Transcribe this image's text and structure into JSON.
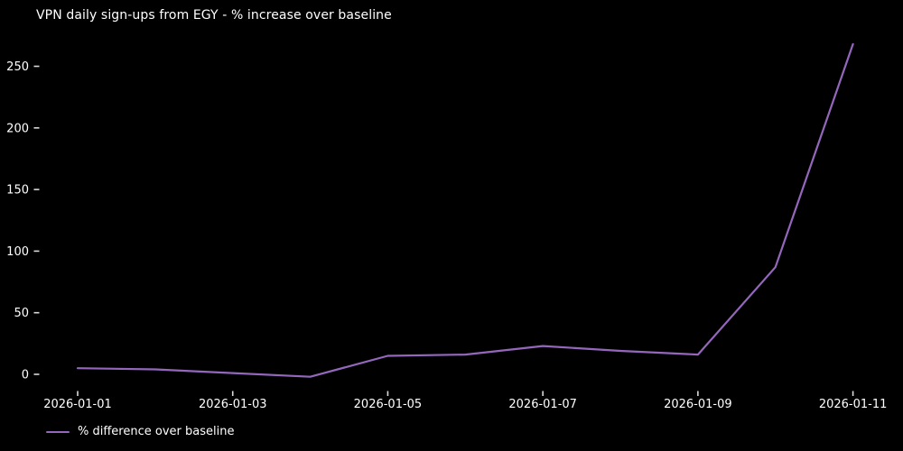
{
  "chart_data": {
    "type": "line",
    "title": "VPN daily sign-ups from EGY - % increase over baseline",
    "x": [
      "2026-01-01",
      "2026-01-02",
      "2026-01-03",
      "2026-01-04",
      "2026-01-05",
      "2026-01-06",
      "2026-01-07",
      "2026-01-08",
      "2026-01-09",
      "2026-01-10",
      "2026-01-11"
    ],
    "series": [
      {
        "name": "% difference over baseline",
        "values": [
          5,
          4,
          1,
          -2,
          15,
          16,
          23,
          19,
          16,
          87,
          268
        ]
      }
    ],
    "xlabel": "",
    "ylabel": "",
    "xtick_labels": [
      "2026-01-01",
      "2026-01-03",
      "2026-01-05",
      "2026-01-07",
      "2026-01-09",
      "2026-01-11"
    ],
    "yticks": [
      0,
      50,
      100,
      150,
      200,
      250
    ],
    "ylim": [
      -13,
      282
    ],
    "grid": false,
    "legend_position": "lower-left",
    "colors": {
      "background": "#000000",
      "text": "#ffffff",
      "tick": "#d9d9d9",
      "line": "#9467bd"
    }
  }
}
